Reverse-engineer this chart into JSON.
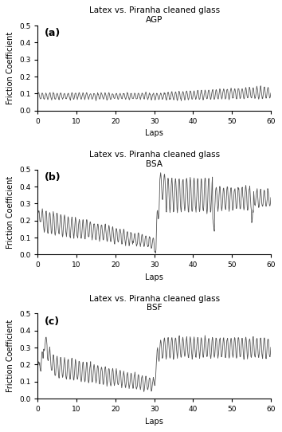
{
  "title_line1": "Latex vs. Piranha cleaned glass",
  "panels": [
    {
      "label": "(a)",
      "subtitle": "AGP",
      "xlim": [
        0,
        60
      ],
      "ylim": [
        0,
        0.5
      ],
      "yticks": [
        0,
        0.1,
        0.2,
        0.3,
        0.4,
        0.5
      ],
      "xlabel": "Laps",
      "ylabel": "Friction Coefficient"
    },
    {
      "label": "(b)",
      "subtitle": "BSA",
      "xlim": [
        0,
        60
      ],
      "ylim": [
        0,
        0.5
      ],
      "yticks": [
        0,
        0.1,
        0.2,
        0.3,
        0.4,
        0.5
      ],
      "xlabel": "Laps",
      "ylabel": "Friction Coefficient"
    },
    {
      "label": "(c)",
      "subtitle": "BSF",
      "xlim": [
        0,
        60
      ],
      "ylim": [
        0,
        0.5
      ],
      "yticks": [
        0,
        0.1,
        0.2,
        0.3,
        0.4,
        0.5
      ],
      "xlabel": "Laps",
      "ylabel": "Friction Coefficient"
    }
  ],
  "line_color": "#555555",
  "line_width": 0.6,
  "font_size_title": 7.5,
  "font_size_label": 7,
  "font_size_tick": 6.5,
  "font_size_panel_label": 9,
  "background_color": "#ffffff"
}
